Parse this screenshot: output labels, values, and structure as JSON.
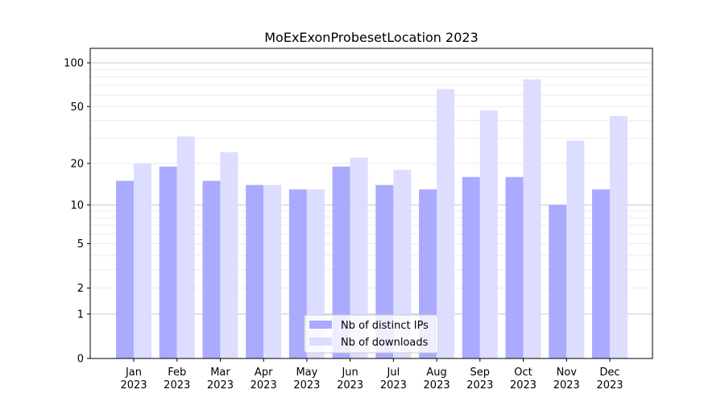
{
  "chart_data": {
    "type": "bar",
    "title": "MoExExonProbesetLocation 2023",
    "xlabel": "",
    "ylabel": "",
    "yscale": "symlog (log10(1+y))",
    "ylim": [
      0,
      130
    ],
    "yticks": [
      0,
      1,
      2,
      5,
      10,
      20,
      50,
      100
    ],
    "grid": true,
    "legend_position": "bottom-center",
    "categories": [
      "Jan\n2023",
      "Feb\n2023",
      "Mar\n2023",
      "Apr\n2023",
      "May\n2023",
      "Jun\n2023",
      "Jul\n2023",
      "Aug\n2023",
      "Sep\n2023",
      "Oct\n2023",
      "Nov\n2023",
      "Dec\n2023"
    ],
    "series": [
      {
        "name": "Nb of distinct IPs",
        "color": "#aaaaff",
        "values": [
          15,
          19,
          15,
          14,
          13,
          19,
          14,
          13,
          16,
          16,
          10,
          13
        ]
      },
      {
        "name": "Nb of downloads",
        "color": "#ddddff",
        "values": [
          20,
          31,
          24,
          14,
          13,
          22,
          18,
          66,
          47,
          77,
          29,
          43
        ]
      }
    ]
  }
}
